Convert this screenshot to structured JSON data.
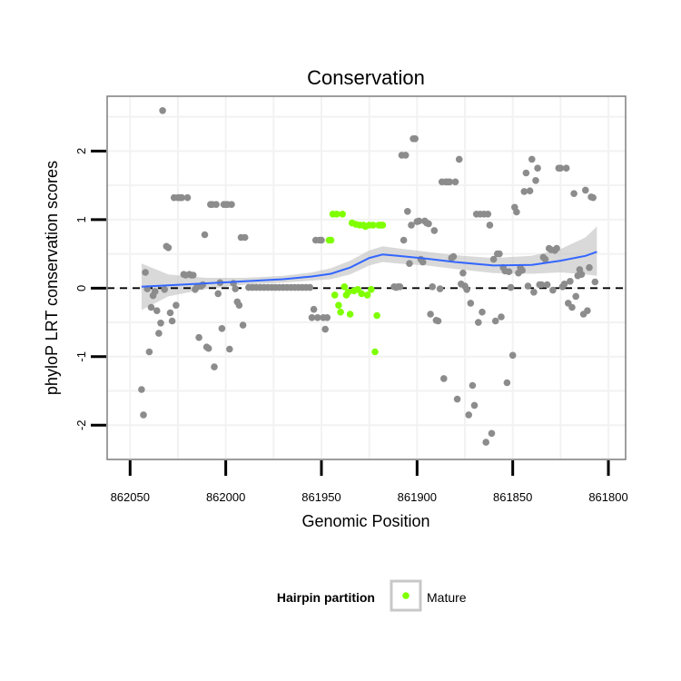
{
  "chart_data": {
    "type": "scatter",
    "title": "Conservation",
    "xlabel": "Genomic Position",
    "ylabel": "phyloP LRT conservation scores",
    "xlim": [
      862062,
      861791
    ],
    "x_reversed": true,
    "ylim": [
      -2.5,
      2.8
    ],
    "x_ticks": [
      862050,
      862000,
      861950,
      861900,
      861850,
      861800
    ],
    "y_ticks": [
      -2,
      -1,
      0,
      1,
      2
    ],
    "grid": true,
    "reference_line": {
      "y": 0,
      "style": "dashed",
      "color": "#000000"
    },
    "legend": {
      "title": "Hairpin partition",
      "position": "bottom",
      "entries": [
        "Mature"
      ]
    },
    "colors": {
      "other": "#8c8c8c",
      "mature": "#7fff00",
      "smooth": "#3366ff",
      "ribbon": "#bfbfbf",
      "panel_border": "#7f7f7f",
      "grid": "#f2f2f2"
    },
    "smooth": {
      "x": [
        862044,
        862030,
        862010,
        861990,
        861970,
        861955,
        861945,
        861935,
        861925,
        861918,
        861910,
        861895,
        861880,
        861860,
        861840,
        861825,
        861812,
        861806
      ],
      "y": [
        0.02,
        0.04,
        0.07,
        0.1,
        0.13,
        0.17,
        0.21,
        0.3,
        0.44,
        0.49,
        0.47,
        0.43,
        0.38,
        0.33,
        0.34,
        0.4,
        0.47,
        0.53
      ],
      "lower": [
        -0.32,
        -0.12,
        -0.01,
        0.05,
        0.08,
        0.11,
        0.13,
        0.2,
        0.33,
        0.38,
        0.36,
        0.33,
        0.28,
        0.22,
        0.21,
        0.23,
        0.2,
        0.18
      ],
      "upper": [
        0.36,
        0.2,
        0.15,
        0.15,
        0.18,
        0.23,
        0.29,
        0.4,
        0.55,
        0.61,
        0.58,
        0.53,
        0.48,
        0.44,
        0.47,
        0.57,
        0.74,
        0.9
      ]
    },
    "series": [
      {
        "name": "Other",
        "points": [
          [
            862044,
            -1.48
          ],
          [
            862043,
            -1.85
          ],
          [
            862042,
            0.23
          ],
          [
            862041,
            -0.01
          ],
          [
            862040,
            -0.93
          ],
          [
            862039,
            -0.28
          ],
          [
            862038,
            -0.11
          ],
          [
            862037,
            -0.05
          ],
          [
            862036,
            -0.33
          ],
          [
            862035,
            -0.66
          ],
          [
            862034,
            -0.51
          ],
          [
            862033,
            2.59
          ],
          [
            862032,
            -0.02
          ],
          [
            862031,
            0.61
          ],
          [
            862030,
            0.59
          ],
          [
            862029,
            -0.36
          ],
          [
            862028,
            -0.48
          ],
          [
            862027,
            1.32
          ],
          [
            862026,
            -0.25
          ],
          [
            862025,
            1.32
          ],
          [
            862024,
            1.32
          ],
          [
            862023,
            1.32
          ],
          [
            862022,
            0.2
          ],
          [
            862021,
            0.19
          ],
          [
            862020,
            1.32
          ],
          [
            862019,
            0.2
          ],
          [
            862018,
            0.19
          ],
          [
            862017,
            0.19
          ],
          [
            862016,
            -0.02
          ],
          [
            862015,
            0.02
          ],
          [
            862014,
            -0.72
          ],
          [
            862013,
            0.03
          ],
          [
            862012,
            0.05
          ],
          [
            862011,
            0.78
          ],
          [
            862010,
            -0.86
          ],
          [
            862009,
            -0.88
          ],
          [
            862008,
            1.22
          ],
          [
            862007,
            1.22
          ],
          [
            862006,
            -1.15
          ],
          [
            862005,
            1.22
          ],
          [
            862004,
            -0.08
          ],
          [
            862003,
            0.08
          ],
          [
            862002,
            -0.59
          ],
          [
            862001,
            1.22
          ],
          [
            862000,
            1.22
          ],
          [
            861999,
            1.22
          ],
          [
            861998,
            -0.89
          ],
          [
            861997,
            1.22
          ],
          [
            861996,
            0.07
          ],
          [
            861995,
            -0.01
          ],
          [
            861994,
            -0.2
          ],
          [
            861993,
            -0.25
          ],
          [
            861992,
            0.74
          ],
          [
            861991,
            -0.54
          ],
          [
            861990,
            0.74
          ],
          [
            861988,
            0.01
          ],
          [
            861986,
            0.01
          ],
          [
            861984,
            0.01
          ],
          [
            861982,
            0.01
          ],
          [
            861980,
            0.01
          ],
          [
            861978,
            0.01
          ],
          [
            861976,
            0.01
          ],
          [
            861974,
            0.01
          ],
          [
            861972,
            0.01
          ],
          [
            861970,
            0.01
          ],
          [
            861968,
            0.01
          ],
          [
            861966,
            0.01
          ],
          [
            861964,
            0.01
          ],
          [
            861962,
            0.01
          ],
          [
            861960,
            0.01
          ],
          [
            861958,
            0.01
          ],
          [
            861956,
            0.01
          ],
          [
            861955,
            -0.43
          ],
          [
            861954,
            -0.31
          ],
          [
            861953,
            0.7
          ],
          [
            861952,
            -0.43
          ],
          [
            861951,
            0.7
          ],
          [
            861950,
            0.7
          ],
          [
            861949,
            -0.43
          ],
          [
            861948,
            -0.6
          ],
          [
            861947,
            -0.43
          ],
          [
            861912,
            0.02
          ],
          [
            861911,
            0.01
          ],
          [
            861910,
            0.02
          ],
          [
            861909,
            0.02
          ],
          [
            861908,
            1.94
          ],
          [
            861907,
            0.7
          ],
          [
            861906,
            1.94
          ],
          [
            861905,
            1.12
          ],
          [
            861904,
            0.36
          ],
          [
            861903,
            0.92
          ],
          [
            861902,
            2.18
          ],
          [
            861901,
            2.18
          ],
          [
            861900,
            0.97
          ],
          [
            861899,
            0.98
          ],
          [
            861898,
            0.42
          ],
          [
            861897,
            0.38
          ],
          [
            861896,
            0.98
          ],
          [
            861895,
            0.95
          ],
          [
            861894,
            0.94
          ],
          [
            861893,
            -0.38
          ],
          [
            861892,
            0.02
          ],
          [
            861891,
            0.84
          ],
          [
            861890,
            -0.47
          ],
          [
            861889,
            -0.48
          ],
          [
            861888,
            -0.01
          ],
          [
            861887,
            1.55
          ],
          [
            861886,
            -1.32
          ],
          [
            861885,
            1.55
          ],
          [
            861884,
            1.55
          ],
          [
            861883,
            1.55
          ],
          [
            861882,
            0.44
          ],
          [
            861881,
            0.46
          ],
          [
            861880,
            1.55
          ],
          [
            861879,
            -1.62
          ],
          [
            861878,
            1.88
          ],
          [
            861877,
            0.06
          ],
          [
            861876,
            0.22
          ],
          [
            861875,
            0.03
          ],
          [
            861874,
            -0.02
          ],
          [
            861873,
            -1.85
          ],
          [
            861872,
            -0.22
          ],
          [
            861871,
            -1.42
          ],
          [
            861870,
            -1.71
          ],
          [
            861869,
            1.08
          ],
          [
            861868,
            -0.5
          ],
          [
            861867,
            1.08
          ],
          [
            861866,
            -0.35
          ],
          [
            861865,
            1.08
          ],
          [
            861864,
            -2.25
          ],
          [
            861863,
            1.08
          ],
          [
            861862,
            0.92
          ],
          [
            861861,
            -2.12
          ],
          [
            861860,
            0.42
          ],
          [
            861859,
            -0.48
          ],
          [
            861858,
            0.5
          ],
          [
            861857,
            0.5
          ],
          [
            861856,
            -0.42
          ],
          [
            861855,
            0.3
          ],
          [
            861854,
            0.25
          ],
          [
            861853,
            -1.38
          ],
          [
            861852,
            0.24
          ],
          [
            861851,
            0.01
          ],
          [
            861850,
            -0.98
          ],
          [
            861849,
            1.18
          ],
          [
            861848,
            1.11
          ],
          [
            861847,
            0.22
          ],
          [
            861846,
            0.3
          ],
          [
            861845,
            0.26
          ],
          [
            861844,
            1.41
          ],
          [
            861843,
            1.68
          ],
          [
            861842,
            0.03
          ],
          [
            861841,
            1.42
          ],
          [
            861840,
            1.88
          ],
          [
            861839,
            -0.06
          ],
          [
            861838,
            1.57
          ],
          [
            861837,
            1.75
          ],
          [
            861836,
            0.05
          ],
          [
            861835,
            0.05
          ],
          [
            861834,
            0.45
          ],
          [
            861833,
            0.42
          ],
          [
            861832,
            0.05
          ],
          [
            861831,
            0.58
          ],
          [
            861830,
            0.56
          ],
          [
            861829,
            -0.03
          ],
          [
            861828,
            0.55
          ],
          [
            861827,
            0.58
          ],
          [
            861826,
            1.75
          ],
          [
            861825,
            1.75
          ],
          [
            861824,
            0.02
          ],
          [
            861823,
            0.06
          ],
          [
            861822,
            1.75
          ],
          [
            861821,
            -0.22
          ],
          [
            861820,
            0.1
          ],
          [
            861819,
            -0.28
          ],
          [
            861818,
            1.38
          ],
          [
            861817,
            -0.12
          ],
          [
            861816,
            0.18
          ],
          [
            861815,
            0.27
          ],
          [
            861814,
            0.2
          ],
          [
            861813,
            -0.38
          ],
          [
            861812,
            1.43
          ],
          [
            861811,
            -0.33
          ],
          [
            861810,
            0.3
          ],
          [
            861809,
            1.33
          ],
          [
            861808,
            1.32
          ],
          [
            861807,
            0.09
          ]
        ]
      },
      {
        "name": "Mature",
        "points": [
          [
            861946,
            0.7
          ],
          [
            861945,
            0.7
          ],
          [
            861944,
            1.08
          ],
          [
            861943,
            -0.1
          ],
          [
            861942,
            1.08
          ],
          [
            861941,
            -0.25
          ],
          [
            861940,
            -0.35
          ],
          [
            861939,
            1.08
          ],
          [
            861938,
            0.02
          ],
          [
            861937,
            -0.1
          ],
          [
            861936,
            -0.06
          ],
          [
            861935,
            -0.38
          ],
          [
            861934,
            0.95
          ],
          [
            861933,
            -0.04
          ],
          [
            861932,
            0.93
          ],
          [
            861931,
            -0.02
          ],
          [
            861930,
            0.92
          ],
          [
            861929,
            -0.08
          ],
          [
            861928,
            0.92
          ],
          [
            861927,
            0.9
          ],
          [
            861926,
            -0.1
          ],
          [
            861925,
            0.92
          ],
          [
            861924,
            -0.02
          ],
          [
            861923,
            0.92
          ],
          [
            861922,
            -0.93
          ],
          [
            861921,
            -0.4
          ],
          [
            861920,
            0.92
          ],
          [
            861919,
            0.92
          ],
          [
            861918,
            0.92
          ]
        ]
      }
    ]
  }
}
